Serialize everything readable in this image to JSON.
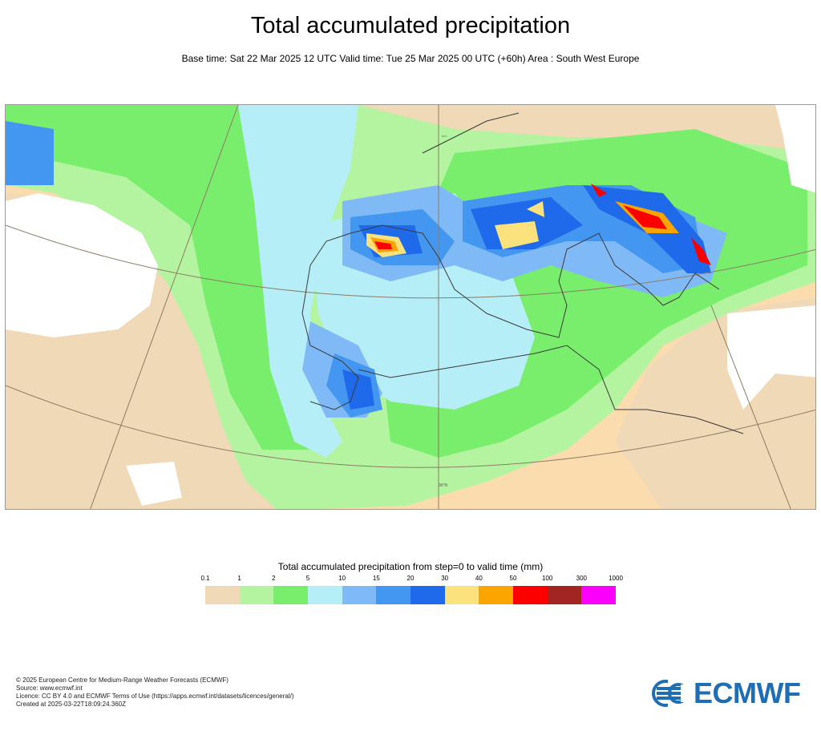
{
  "header": {
    "title": "Total accumulated precipitation",
    "subtitle": "Base time: Sat 22 Mar 2025 12 UTC Valid time: Tue 25 Mar 2025 00 UTC (+60h) Area : South West Europe"
  },
  "map": {
    "latitude_label": "30°N",
    "meridian_label": "30°N"
  },
  "legend": {
    "title": "Total accumulated precipitation from step=0 to valid time (mm)",
    "ticks": [
      "0.1",
      "1",
      "2",
      "5",
      "10",
      "15",
      "20",
      "30",
      "40",
      "50",
      "100",
      "300",
      "1000"
    ],
    "colors": [
      "#efd9b6",
      "#b4f4a0",
      "#79ee6c",
      "#b5eef6",
      "#80baf6",
      "#4497f0",
      "#1e6aea",
      "#fbe27d",
      "#fca400",
      "#fc0000",
      "#a22521",
      "#fb00fb"
    ]
  },
  "footer": {
    "lines": [
      "© 2025 European Centre for Medium-Range Weather Forecasts (ECMWF)",
      "Source: www.ecmwf.int",
      "Licence: CC BY 4.0 and ECMWF Terms of Use (https://apps.ecmwf.int/datasets/licences/general/)",
      "Created at 2025-03-22T18:09:24.360Z"
    ]
  },
  "brand": {
    "logo_text": "ECMWF",
    "color": "#1f6db2"
  }
}
